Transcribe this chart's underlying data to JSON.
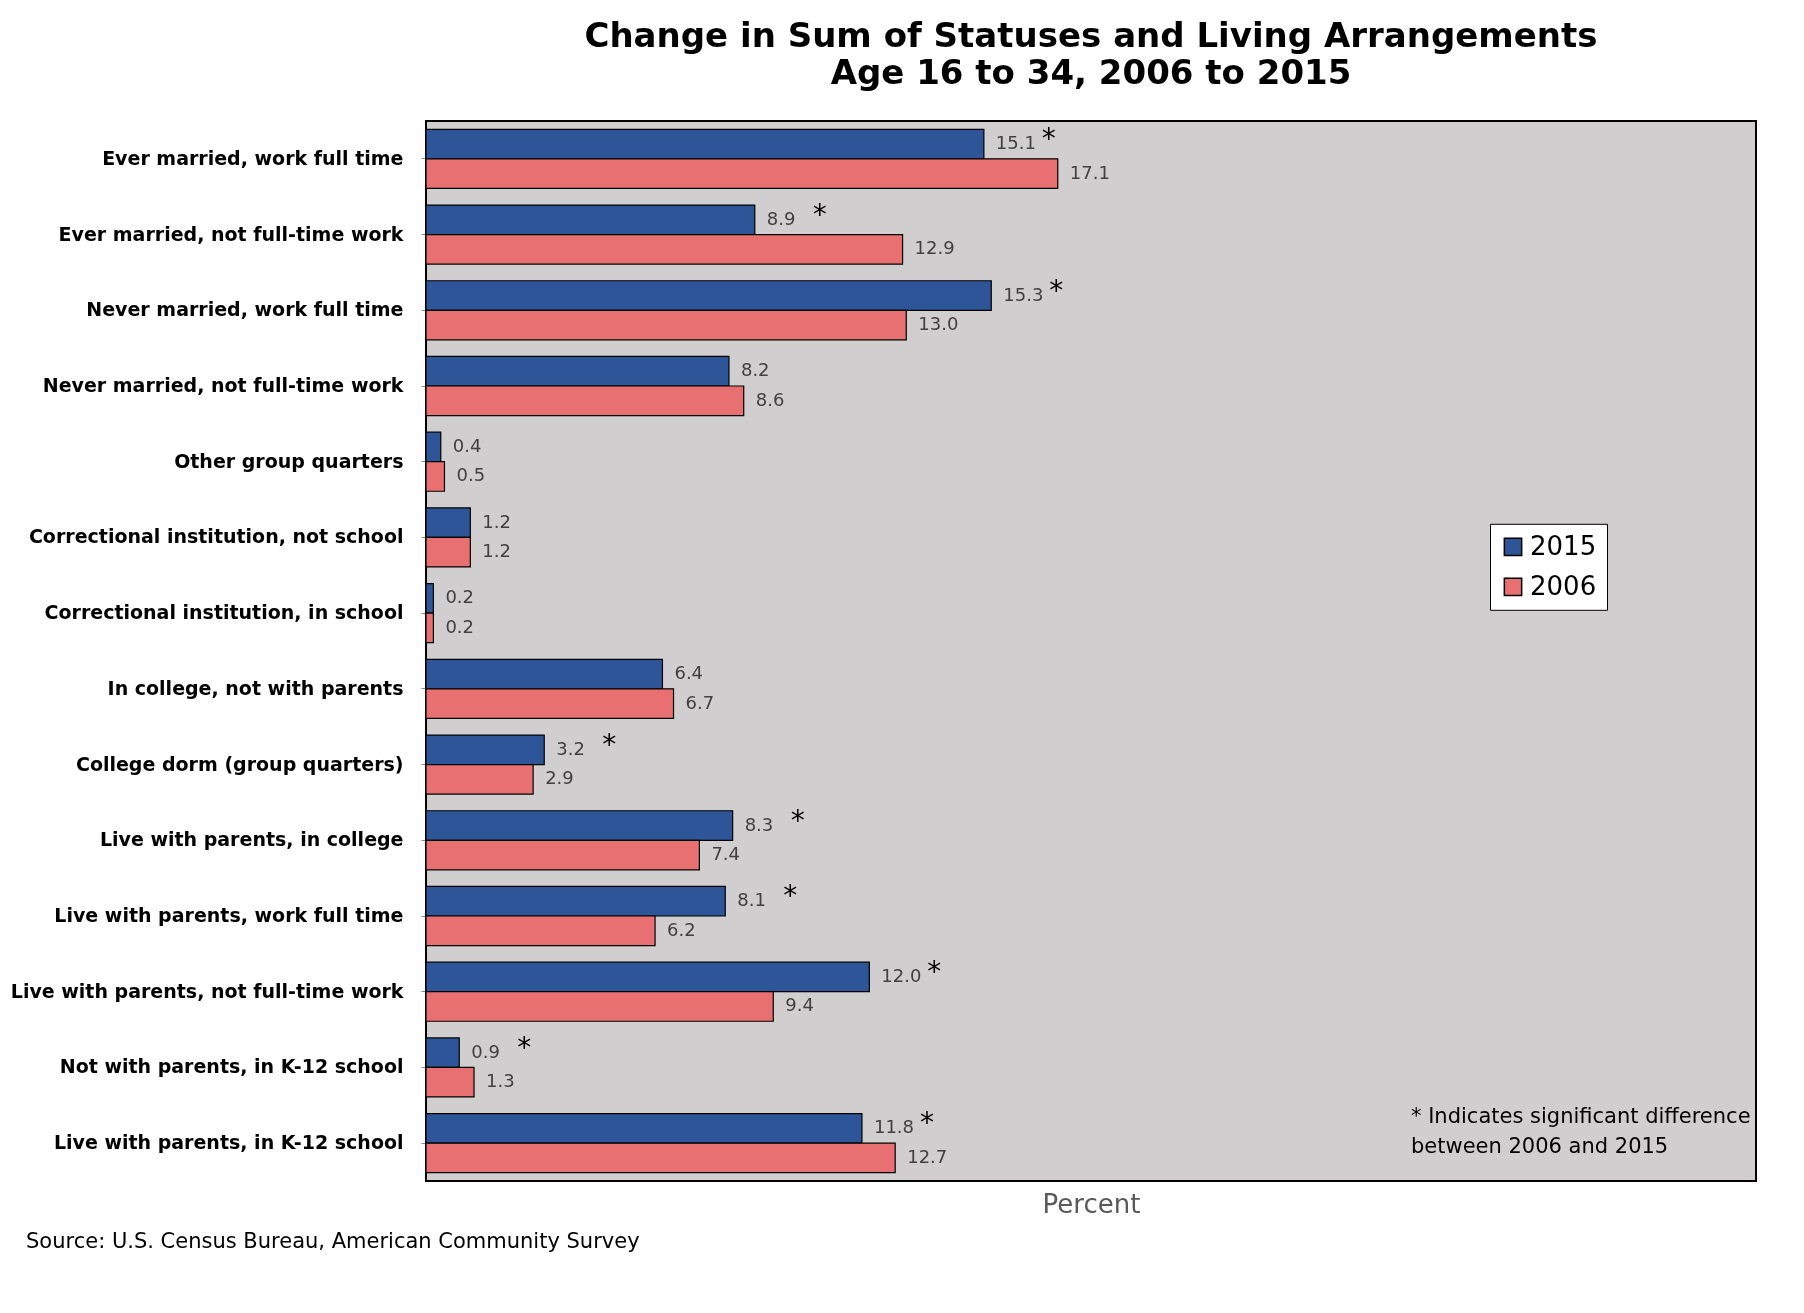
{
  "chart_data": {
    "type": "bar",
    "orientation": "horizontal",
    "title": "Change in Sum of Statuses and Living Arrangements",
    "subtitle": "Age 16 to 34, 2006 to 2015",
    "xlabel": "Percent",
    "categories": [
      "Ever married, work full time",
      "Ever married, not full-time work",
      "Never married, work full time",
      "Never married, not full-time work",
      "Other group quarters",
      "Correctional institution, not school",
      "Correctional institution, in school",
      "In college, not with parents",
      "College dorm (group quarters)",
      "Live with parents, in college",
      "Live with parents, work full time",
      "Live with parents, not full-time work",
      "Not with parents, in K-12 school",
      "Live with parents, in K-12 school"
    ],
    "series": [
      {
        "name": "2015",
        "color": "#2e5597",
        "values": [
          15.1,
          8.9,
          15.3,
          8.2,
          0.4,
          1.2,
          0.2,
          6.4,
          3.2,
          8.3,
          8.1,
          12.0,
          0.9,
          11.8
        ],
        "value_labels": [
          "15.1",
          "8.9",
          "15.3",
          "8.2",
          "0.4",
          "1.2",
          "0.2",
          "6.4",
          "3.2",
          "8.3",
          "8.1",
          "12.0",
          "0.9",
          "11.8"
        ]
      },
      {
        "name": "2006",
        "color": "#e87070",
        "values": [
          17.1,
          12.9,
          13.0,
          8.6,
          0.5,
          1.2,
          0.2,
          6.7,
          2.9,
          7.4,
          6.2,
          9.4,
          1.3,
          12.7
        ],
        "value_labels": [
          "17.1",
          "12.9",
          "13.0",
          "8.6",
          "0.5",
          "1.2",
          "0.2",
          "6.7",
          "2.9",
          "7.4",
          "6.2",
          "9.4",
          "1.3",
          "12.7"
        ]
      }
    ],
    "xlim": [
      0,
      36
    ],
    "tick_labels": "y",
    "legend": "right",
    "annotations": [
      "* Indicates significant difference between 2006 and 2015",
      "Source: U.S. Census Bureau, American Community Survey",
      {
        "text": "*",
        "x": 15.1,
        "y": "Ever married, work full time"
      },
      {
        "text": "*",
        "x": 8.9,
        "y": "Ever married, not full-time work"
      },
      {
        "text": "*",
        "x": 15.3,
        "y": "Never married, work full time"
      },
      {
        "text": "*",
        "x": 3.2,
        "y": "College dorm (group quarters)"
      },
      {
        "text": "*",
        "x": 8.3,
        "y": "Live with parents, in college"
      },
      {
        "text": "*",
        "x": 8.1,
        "y": "Live with parents, work full time"
      },
      {
        "text": "*",
        "x": 12.0,
        "y": "Live with parents, not full-time work"
      },
      {
        "text": "*",
        "x": 0.9,
        "y": "Not with parents, in K-12 school"
      },
      {
        "text": "*",
        "x": 11.8,
        "y": "Live with parents, in K-12 school"
      }
    ]
  }
}
